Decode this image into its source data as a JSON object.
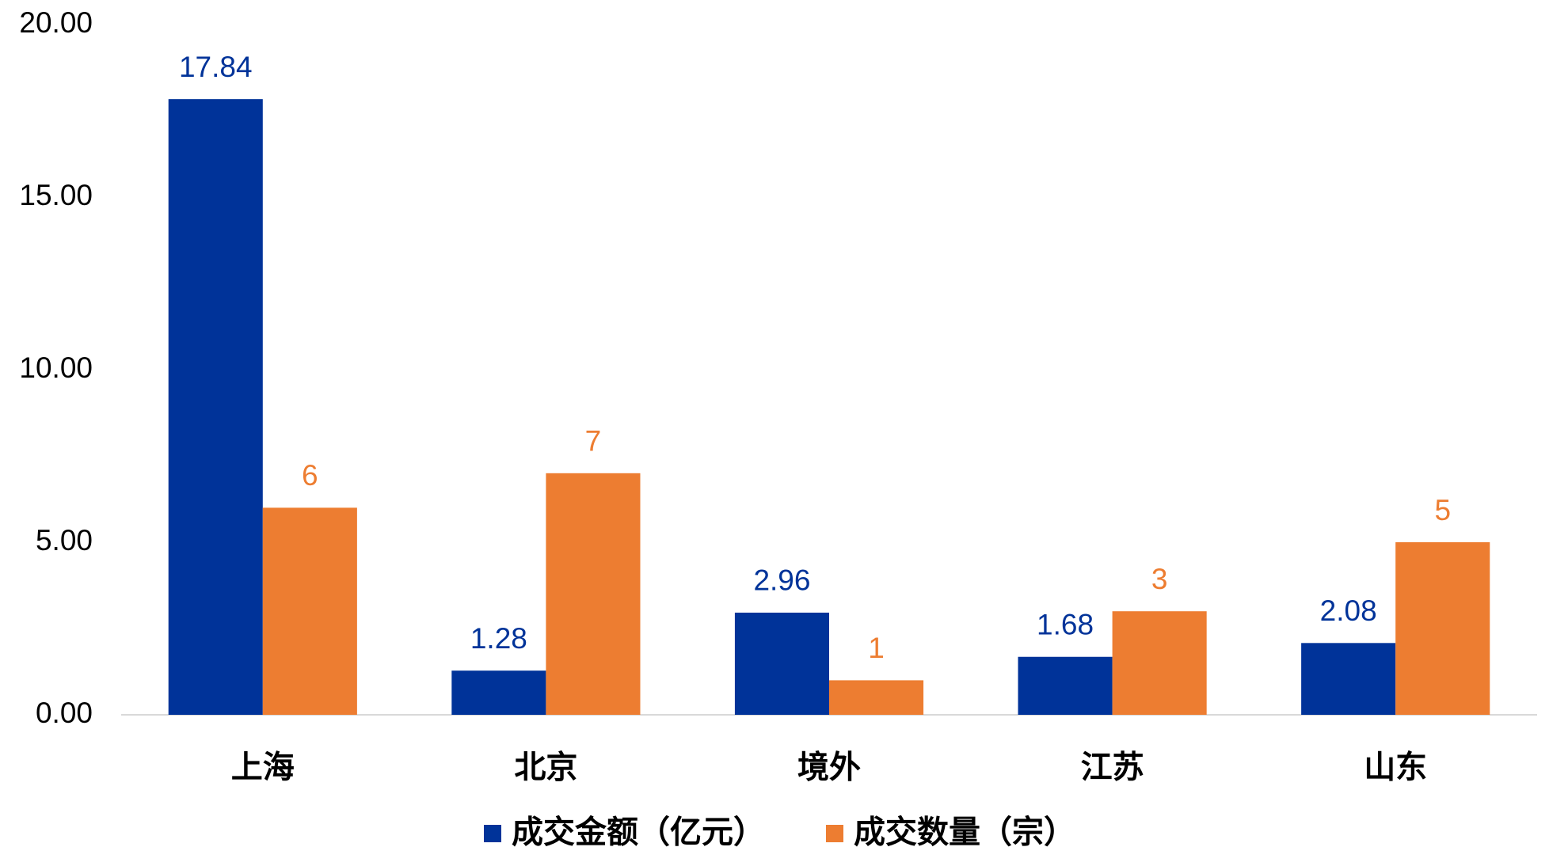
{
  "chart_data": {
    "type": "bar",
    "categories": [
      "上海",
      "北京",
      "境外",
      "江苏",
      "山东"
    ],
    "series": [
      {
        "name": "成交金额（亿元）",
        "color": "#003399",
        "values": [
          17.84,
          1.28,
          2.96,
          1.68,
          2.08
        ]
      },
      {
        "name": "成交数量（宗）",
        "color": "#ED7D31",
        "values": [
          6,
          7,
          1,
          3,
          5
        ]
      }
    ],
    "ylim": [
      0,
      20
    ],
    "yticks": [
      {
        "value": 0,
        "label": "0.00"
      },
      {
        "value": 5,
        "label": "5.00"
      },
      {
        "value": 10,
        "label": "10.00"
      },
      {
        "value": 15,
        "label": "15.00"
      },
      {
        "value": 20,
        "label": "20.00"
      }
    ],
    "grid": false,
    "legend": "bottom"
  }
}
